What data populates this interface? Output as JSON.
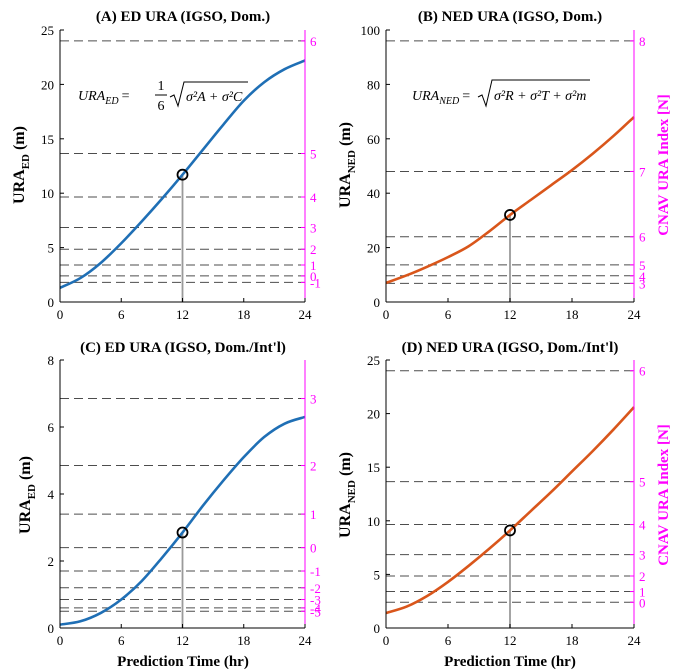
{
  "colors": {
    "ed_curve": "#1f6fb5",
    "ned_curve": "#d9561b",
    "index_axis": "#ff00ff",
    "threshold": "#4d4d4d",
    "marker_stem": "#9a9a9a"
  },
  "axis_labels": {
    "x": "Prediction Time (hr)",
    "y_ed_main": "URA",
    "y_ed_sub": "ED",
    "y_ned_main": "URA",
    "y_ned_sub": "NED",
    "y_unit": " (m)",
    "right": "CNAV URA Index [N]"
  },
  "formulas": {
    "ed": {
      "lhs_main": "URA",
      "lhs_sub": "ED",
      "frac_num": "1",
      "frac_den": "6",
      "radicand": "σ²A + σ²C"
    },
    "ned": {
      "lhs_main": "URA",
      "lhs_sub": "NED",
      "radicand": "σ²R + σ²T + σ²m"
    }
  },
  "chart_data": [
    {
      "panel": "A",
      "type": "line",
      "title": "(A) ED URA (IGSO, Dom.)",
      "xlabel": "",
      "xlim": [
        0,
        24
      ],
      "xticks": [
        0,
        6,
        12,
        18,
        24
      ],
      "ylim": [
        0,
        25
      ],
      "yticks": [
        0,
        5,
        10,
        15,
        20,
        25
      ],
      "series": [
        {
          "x": [
            0,
            2,
            4,
            6,
            8,
            10,
            12,
            14,
            16,
            18,
            20,
            22,
            24
          ],
          "y": [
            1.3,
            2.2,
            3.6,
            5.4,
            7.4,
            9.5,
            11.7,
            14.0,
            16.3,
            18.5,
            20.2,
            21.4,
            22.2
          ]
        }
      ],
      "marker": {
        "x": 12,
        "y": 11.7
      },
      "right_axis": {
        "label_shown": false,
        "index_ticks": [
          {
            "label": "-1",
            "value": 1.8
          },
          {
            "label": "0",
            "value": 2.4
          },
          {
            "label": "1",
            "value": 3.4
          },
          {
            "label": "2",
            "value": 4.85
          },
          {
            "label": "3",
            "value": 6.85
          },
          {
            "label": "4",
            "value": 9.65
          },
          {
            "label": "5",
            "value": 13.65
          },
          {
            "label": "6",
            "value": 24.0
          }
        ]
      }
    },
    {
      "panel": "B",
      "type": "line",
      "title": "(B) NED URA (IGSO, Dom.)",
      "xlabel": "",
      "xlim": [
        0,
        24
      ],
      "xticks": [
        0,
        6,
        12,
        18,
        24
      ],
      "ylim": [
        0,
        100
      ],
      "yticks": [
        0,
        20,
        40,
        60,
        80,
        100
      ],
      "series": [
        {
          "x": [
            0,
            2,
            4,
            6,
            8,
            10,
            12,
            14,
            16,
            18,
            20,
            22,
            24
          ],
          "y": [
            7.0,
            9.8,
            13.0,
            16.5,
            20.5,
            26.0,
            32.0,
            37.5,
            43.0,
            48.5,
            54.5,
            61.0,
            68.0
          ]
        }
      ],
      "marker": {
        "x": 12,
        "y": 32
      },
      "right_axis": {
        "label_shown": true,
        "index_ticks": [
          {
            "label": "3",
            "value": 6.85
          },
          {
            "label": "4",
            "value": 9.65
          },
          {
            "label": "5",
            "value": 13.65
          },
          {
            "label": "6",
            "value": 24.0
          },
          {
            "label": "7",
            "value": 48.0
          },
          {
            "label": "8",
            "value": 96.0
          }
        ]
      }
    },
    {
      "panel": "C",
      "type": "line",
      "title": "(C) ED URA (IGSO, Dom./Int'l)",
      "xlabel": "Prediction Time (hr)",
      "xlim": [
        0,
        24
      ],
      "xticks": [
        0,
        6,
        12,
        18,
        24
      ],
      "ylim": [
        0,
        8
      ],
      "yticks": [
        0,
        2,
        4,
        6,
        8
      ],
      "series": [
        {
          "x": [
            0,
            2,
            4,
            6,
            8,
            10,
            12,
            14,
            16,
            18,
            20,
            22,
            24
          ],
          "y": [
            0.1,
            0.2,
            0.45,
            0.85,
            1.4,
            2.1,
            2.85,
            3.65,
            4.4,
            5.1,
            5.7,
            6.1,
            6.3
          ]
        }
      ],
      "marker": {
        "x": 12,
        "y": 2.85
      },
      "right_axis": {
        "label_shown": false,
        "index_ticks": [
          {
            "label": "-5",
            "value": 0.5
          },
          {
            "label": "-4",
            "value": 0.6
          },
          {
            "label": "-3",
            "value": 0.85
          },
          {
            "label": "-2",
            "value": 1.2
          },
          {
            "label": "-1",
            "value": 1.7
          },
          {
            "label": "0",
            "value": 2.4
          },
          {
            "label": "1",
            "value": 3.4
          },
          {
            "label": "2",
            "value": 4.85
          },
          {
            "label": "3",
            "value": 6.85
          }
        ]
      }
    },
    {
      "panel": "D",
      "type": "line",
      "title": "(D) NED URA (IGSO, Dom./Int'l)",
      "xlabel": "Prediction Time (hr)",
      "xlim": [
        0,
        24
      ],
      "xticks": [
        0,
        6,
        12,
        18,
        24
      ],
      "ylim": [
        0,
        25
      ],
      "yticks": [
        0,
        5,
        10,
        15,
        20,
        25
      ],
      "series": [
        {
          "x": [
            0,
            2,
            4,
            6,
            8,
            10,
            12,
            14,
            16,
            18,
            20,
            22,
            24
          ],
          "y": [
            1.4,
            2.0,
            3.0,
            4.3,
            5.8,
            7.4,
            9.1,
            10.9,
            12.7,
            14.6,
            16.5,
            18.5,
            20.6
          ]
        }
      ],
      "marker": {
        "x": 12,
        "y": 9.1
      },
      "right_axis": {
        "label_shown": true,
        "index_ticks": [
          {
            "label": "0",
            "value": 2.4
          },
          {
            "label": "1",
            "value": 3.4
          },
          {
            "label": "2",
            "value": 4.85
          },
          {
            "label": "3",
            "value": 6.85
          },
          {
            "label": "4",
            "value": 9.65
          },
          {
            "label": "5",
            "value": 13.65
          },
          {
            "label": "6",
            "value": 24.0
          }
        ]
      }
    }
  ]
}
